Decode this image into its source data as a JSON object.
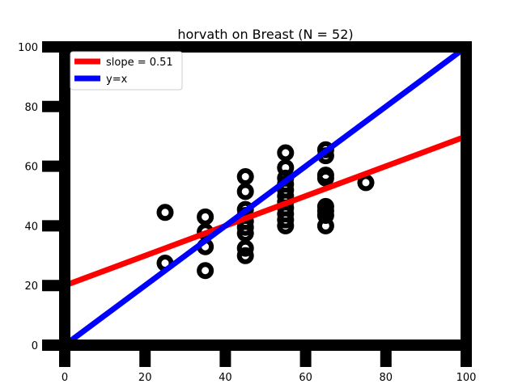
{
  "chart_data": {
    "type": "scatter",
    "title": "horvath on Breast (N = 52)",
    "xlabel": "",
    "ylabel": "",
    "xlim": [
      0,
      100
    ],
    "ylim": [
      0,
      100
    ],
    "xticks": [
      0,
      20,
      40,
      60,
      80,
      100
    ],
    "yticks": [
      0,
      20,
      40,
      60,
      80,
      100
    ],
    "grid": false,
    "legend_position": "top-left",
    "series": [
      {
        "kind": "scatter",
        "color": "#000000",
        "points": [
          [
            25,
            44.5
          ],
          [
            25,
            27.5
          ],
          [
            35,
            43
          ],
          [
            35,
            38
          ],
          [
            35,
            33
          ],
          [
            35,
            25
          ],
          [
            45,
            56.5
          ],
          [
            45,
            51.5
          ],
          [
            45,
            45.5
          ],
          [
            45,
            43.5
          ],
          [
            45,
            41.5
          ],
          [
            45,
            39.5
          ],
          [
            45,
            37.5
          ],
          [
            45,
            32.5
          ],
          [
            45,
            30
          ],
          [
            55,
            64.5
          ],
          [
            55,
            59.5
          ],
          [
            55,
            56
          ],
          [
            55,
            54
          ],
          [
            55,
            52
          ],
          [
            55,
            50
          ],
          [
            55,
            48
          ],
          [
            55,
            46
          ],
          [
            55,
            44
          ],
          [
            55,
            42
          ],
          [
            55,
            40
          ],
          [
            65,
            65.5
          ],
          [
            65,
            63.5
          ],
          [
            65,
            57
          ],
          [
            65,
            56
          ],
          [
            65,
            46.5
          ],
          [
            65,
            45
          ],
          [
            65,
            43.5
          ],
          [
            65,
            40
          ],
          [
            75,
            54.5
          ]
        ]
      },
      {
        "kind": "line",
        "name": "slope = 0.51",
        "color": "#ff0000",
        "x": [
          0,
          100
        ],
        "y": [
          20,
          70
        ]
      },
      {
        "kind": "line",
        "name": "y=x",
        "color": "#0000ff",
        "x": [
          0,
          100
        ],
        "y": [
          0,
          100
        ]
      }
    ]
  }
}
